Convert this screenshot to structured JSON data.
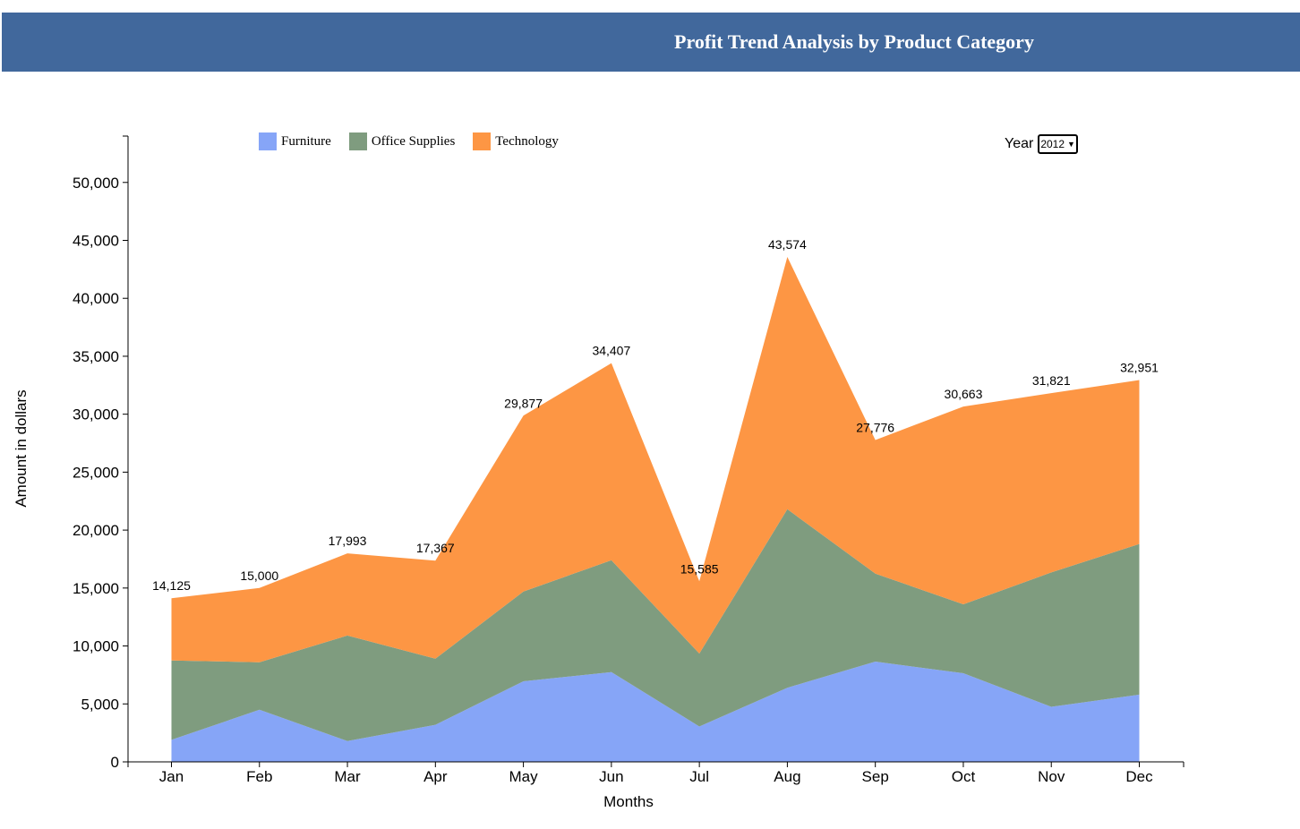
{
  "header": {
    "title": "Profit Trend Analysis by Product Category"
  },
  "controls": {
    "year_label": "Year",
    "year_selected": "2012"
  },
  "chart_data": {
    "type": "area",
    "stacked": true,
    "title": "Profit Trend Analysis by Product Category",
    "xlabel": "Months",
    "ylabel": "Amount in dollars",
    "categories": [
      "Jan",
      "Feb",
      "Mar",
      "Apr",
      "May",
      "Jun",
      "Jul",
      "Aug",
      "Sep",
      "Oct",
      "Nov",
      "Dec"
    ],
    "ylim": [
      0,
      54000
    ],
    "yticks": [
      0,
      5000,
      10000,
      15000,
      20000,
      25000,
      30000,
      35000,
      40000,
      45000,
      50000
    ],
    "ytick_labels": [
      "0",
      "5,000",
      "10,000",
      "15,000",
      "20,000",
      "25,000",
      "30,000",
      "35,000",
      "40,000",
      "45,000",
      "50,000"
    ],
    "legend_position": "top-left",
    "grid": false,
    "series": [
      {
        "name": "Furniture",
        "color": "#86a5f7",
        "values": [
          1900,
          4500,
          1800,
          3200,
          6950,
          7750,
          3050,
          6400,
          8650,
          7650,
          4750,
          5800
        ]
      },
      {
        "name": "Office Supplies",
        "color": "#7f9c7f",
        "values": [
          6850,
          4100,
          9100,
          5700,
          7750,
          9650,
          6300,
          15400,
          7600,
          5950,
          11600,
          13000
        ]
      },
      {
        "name": "Technology",
        "color": "#fd9644",
        "values": [
          5375,
          6400,
          7093,
          8467,
          15177,
          17007,
          6235,
          21774,
          11526,
          17063,
          15471,
          14151
        ]
      }
    ],
    "totals": [
      14125,
      15000,
      17993,
      17367,
      29877,
      34407,
      15585,
      43574,
      27776,
      30663,
      31821,
      32951
    ],
    "total_labels": [
      "14,125",
      "15,000",
      "17,993",
      "17,367",
      "29,877",
      "34,407",
      "15,585",
      "43,574",
      "27,776",
      "30,663",
      "31,821",
      "32,951"
    ]
  }
}
